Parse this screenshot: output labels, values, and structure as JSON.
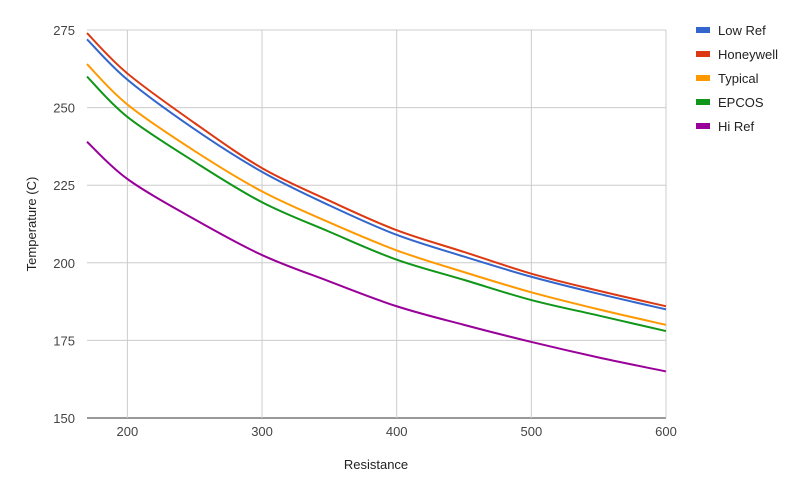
{
  "chart_data": {
    "type": "line",
    "title": "",
    "xlabel": "Resistance",
    "ylabel": "Temperature (C)",
    "xlim": [
      170,
      600
    ],
    "ylim": [
      150,
      275
    ],
    "xticks": [
      200,
      300,
      400,
      500,
      600
    ],
    "yticks": [
      150,
      175,
      200,
      225,
      250,
      275
    ],
    "grid": true,
    "legend_position": "right",
    "x": [
      170,
      200,
      250,
      300,
      350,
      400,
      450,
      500,
      550,
      600
    ],
    "series": [
      {
        "name": "Low Ref",
        "color": "#3366cc",
        "values": [
          272,
          259,
          243,
          229.3,
          218.5,
          209,
          202,
          195.5,
          190,
          185
        ]
      },
      {
        "name": "Honeywell",
        "color": "#dc3912",
        "values": [
          274,
          261,
          245,
          230.5,
          220,
          210.5,
          203.5,
          196.5,
          191,
          186
        ]
      },
      {
        "name": "Typical",
        "color": "#ff9900",
        "values": [
          264,
          251,
          236,
          223,
          213,
          204,
          197,
          190.5,
          185,
          180
        ]
      },
      {
        "name": "EPCOS",
        "color": "#109618",
        "values": [
          260,
          247,
          232.5,
          219.5,
          210,
          201,
          194.5,
          188,
          183,
          178
        ]
      },
      {
        "name": "Hi Ref",
        "color": "#990099",
        "values": [
          239,
          227,
          214,
          202.5,
          194,
          186,
          180,
          174.5,
          169.5,
          165
        ]
      }
    ]
  }
}
